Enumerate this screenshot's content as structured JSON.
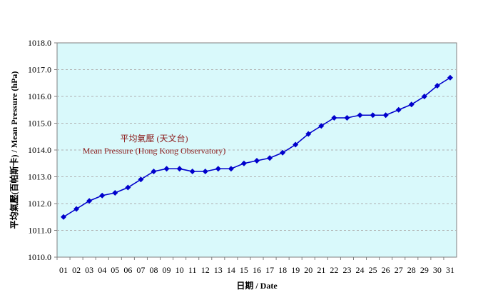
{
  "chart_data": {
    "type": "line",
    "xlabel": "日期 / Date",
    "ylabel": "平均氣壓(百帕斯卡) / Mean Pressure (hPa)",
    "ylim": [
      1010.0,
      1018.0
    ],
    "ytick_step": 1.0,
    "grid": "horizontal dashed",
    "categories": [
      "01",
      "02",
      "03",
      "04",
      "05",
      "06",
      "07",
      "08",
      "09",
      "10",
      "11",
      "12",
      "13",
      "14",
      "15",
      "16",
      "17",
      "18",
      "19",
      "20",
      "21",
      "22",
      "23",
      "24",
      "25",
      "26",
      "27",
      "28",
      "29",
      "30",
      "31"
    ],
    "series": [
      {
        "name": "平均氣壓 (天文台) Mean Pressure (Hong Kong Observatory)",
        "color": "#0000cc",
        "values": [
          1011.5,
          1011.8,
          1012.1,
          1012.3,
          1012.4,
          1012.6,
          1012.9,
          1013.2,
          1013.3,
          1013.3,
          1013.2,
          1013.2,
          1013.3,
          1013.3,
          1013.5,
          1013.6,
          1013.7,
          1013.9,
          1014.2,
          1014.6,
          1014.9,
          1015.2,
          1015.2,
          1015.3,
          1015.3,
          1015.3,
          1015.5,
          1015.7,
          1016.0,
          1016.4,
          1016.7
        ]
      }
    ],
    "annotation": {
      "line1": "平均氣壓 (天文台)",
      "line2": "Mean Pressure (Hong Kong Observatory)"
    },
    "plot_background": "#d9f9fb"
  }
}
